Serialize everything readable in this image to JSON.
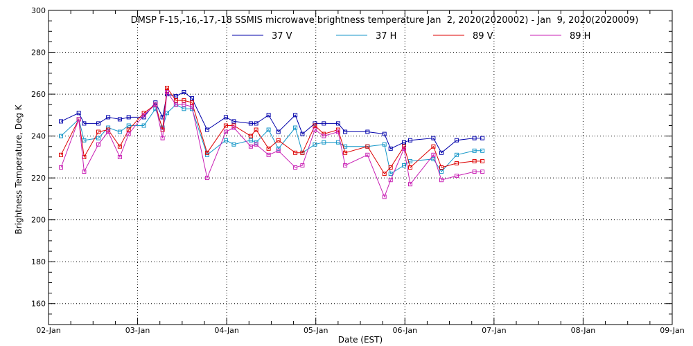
{
  "chart_data": {
    "type": "line",
    "title": "DMSP F-15,-16,-17,-18 SSMIS microwave brightness temperature Jan  2, 2020(2020002) - Jan  9, 2020(2020009)",
    "xlabel": "Date (EST)",
    "ylabel": "Brightness Temperature, Deg K",
    "ylim": [
      150,
      300
    ],
    "xlim": [
      0,
      7
    ],
    "x_unit": "days since 02-Jan",
    "grid": true,
    "legend_position": "top",
    "x_ticks": [
      {
        "v": 0,
        "label": "02-Jan"
      },
      {
        "v": 1,
        "label": "03-Jan"
      },
      {
        "v": 2,
        "label": "04-Jan"
      },
      {
        "v": 3,
        "label": "05-Jan"
      },
      {
        "v": 4,
        "label": "06-Jan"
      },
      {
        "v": 5,
        "label": "07-Jan"
      },
      {
        "v": 6,
        "label": "08-Jan"
      },
      {
        "v": 7,
        "label": "09-Jan"
      }
    ],
    "y_ticks": [
      {
        "v": 160,
        "label": "160"
      },
      {
        "v": 180,
        "label": "180"
      },
      {
        "v": 200,
        "label": "200"
      },
      {
        "v": 220,
        "label": "220"
      },
      {
        "v": 240,
        "label": "240"
      },
      {
        "v": 260,
        "label": "260"
      },
      {
        "v": 280,
        "label": "280"
      },
      {
        "v": 300,
        "label": "300"
      }
    ],
    "x": [
      0.14,
      0.34,
      0.4,
      0.56,
      0.67,
      0.8,
      0.9,
      1.07,
      1.2,
      1.28,
      1.33,
      1.43,
      1.52,
      1.61,
      1.78,
      1.99,
      2.08,
      2.27,
      2.33,
      2.47,
      2.58,
      2.77,
      2.85,
      2.99,
      3.09,
      3.25,
      3.33,
      3.58,
      3.77,
      3.84,
      3.99,
      4.06,
      4.32,
      4.41,
      4.58,
      4.78,
      4.87
    ],
    "series": [
      {
        "name": "37 V",
        "color": "#0000aa",
        "values": [
          247,
          251,
          246,
          246,
          249,
          248,
          249,
          249,
          256,
          249,
          260,
          259,
          261,
          258,
          243,
          249,
          247,
          246,
          246,
          250,
          242,
          250,
          241,
          246,
          246,
          246,
          242,
          242,
          241,
          234,
          237,
          238,
          239,
          232,
          238,
          239,
          239
        ]
      },
      {
        "name": "37 H",
        "color": "#1496c8",
        "values": [
          240,
          248,
          238,
          239,
          244,
          242,
          245,
          245,
          253,
          244,
          251,
          255,
          253,
          253,
          231,
          238,
          236,
          238,
          237,
          243,
          234,
          244,
          232,
          236,
          237,
          237,
          235,
          235,
          236,
          222,
          226,
          228,
          229,
          223,
          231,
          233,
          233
        ]
      },
      {
        "name": "89 V",
        "color": "#dc0000",
        "values": [
          231,
          248,
          230,
          242,
          243,
          235,
          243,
          251,
          255,
          243,
          263,
          257,
          257,
          256,
          232,
          245,
          245,
          240,
          243,
          234,
          238,
          232,
          232,
          245,
          241,
          243,
          232,
          235,
          222,
          225,
          235,
          225,
          235,
          225,
          227,
          228,
          228
        ]
      },
      {
        "name": "89 H",
        "color": "#c81eb4",
        "values": [
          225,
          248,
          223,
          236,
          242,
          230,
          241,
          250,
          255,
          239,
          261,
          255,
          255,
          254,
          220,
          242,
          244,
          235,
          236,
          231,
          233,
          225,
          226,
          243,
          240,
          242,
          226,
          231,
          211,
          219,
          234,
          217,
          231,
          219,
          221,
          223,
          223
        ]
      }
    ]
  }
}
